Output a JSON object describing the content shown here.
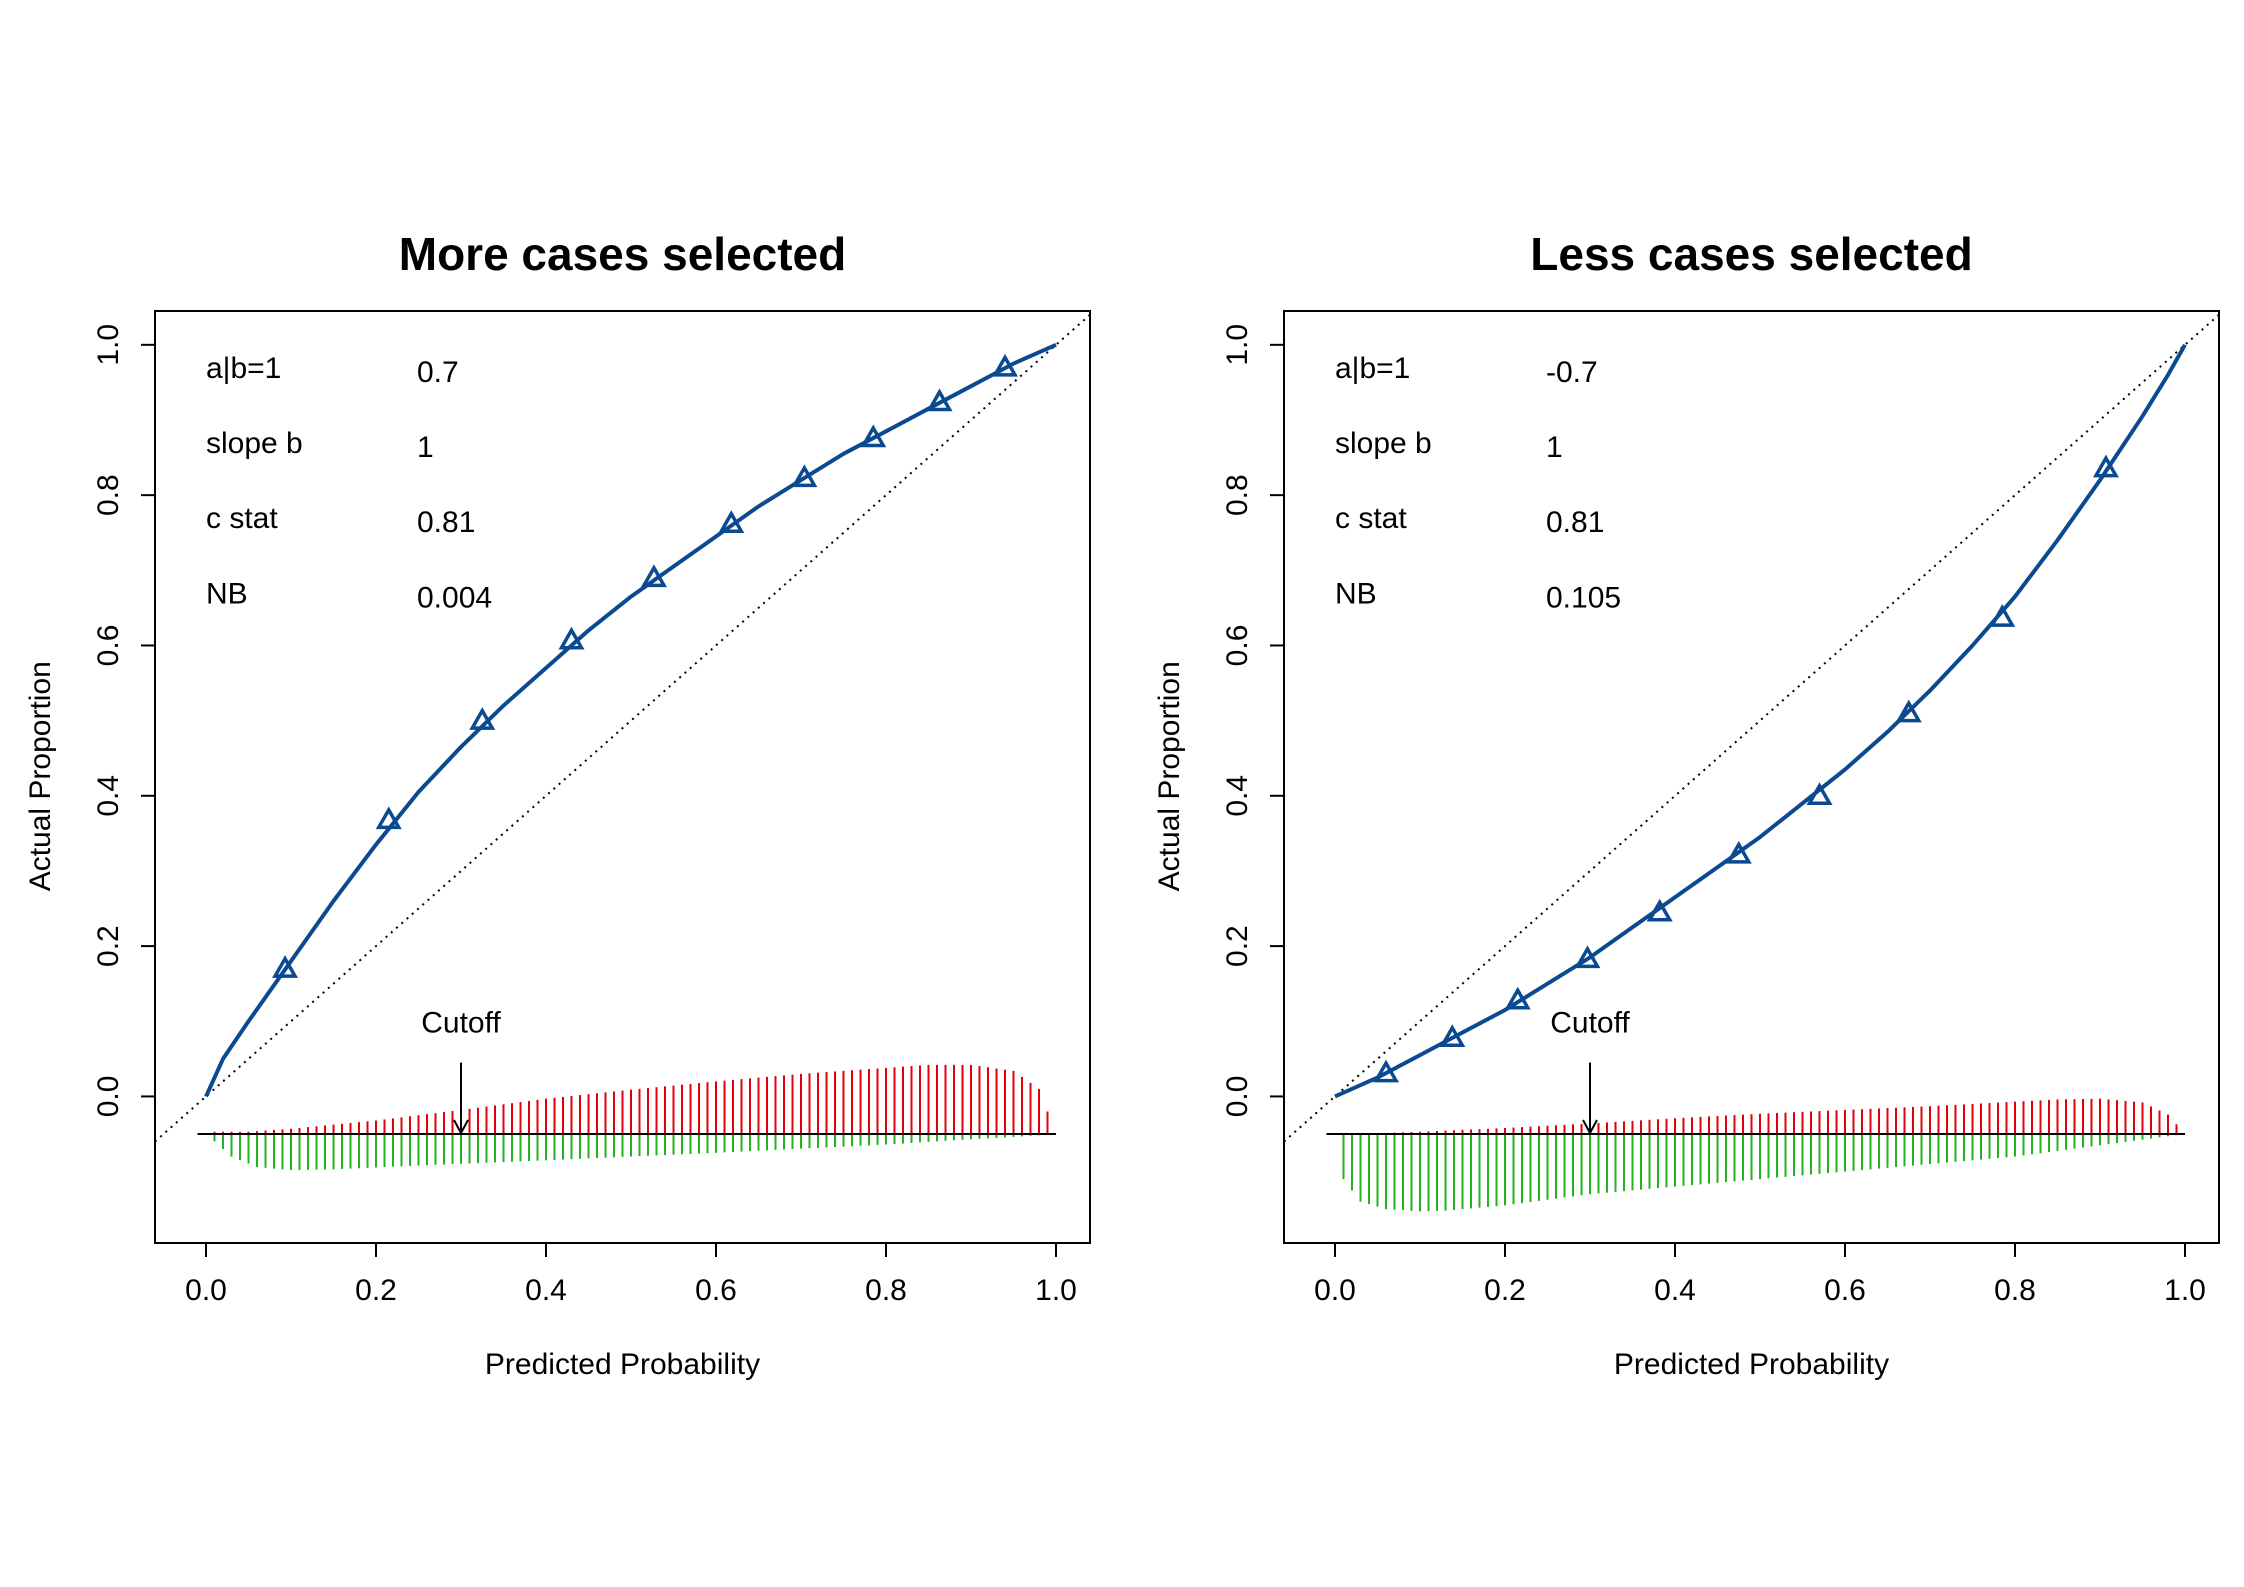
{
  "colors": {
    "curve": "#0b4a91",
    "positive_spikes": "#e0000b",
    "negative_spikes": "#22b322",
    "axis": "#000000",
    "background": "#ffffff"
  },
  "icons": {
    "marker": "open-triangle-icon",
    "cutoff_arrow": "down-arrow-icon"
  },
  "chart_data": [
    {
      "type": "line",
      "title": "More cases selected",
      "xlabel": "Predicted Probability",
      "ylabel": "Actual Proportion",
      "xlim": [
        -0.06,
        1.04
      ],
      "ylim": [
        -0.195,
        1.045
      ],
      "xticks": [
        "0.0",
        "0.2",
        "0.4",
        "0.6",
        "0.8",
        "1.0"
      ],
      "yticks": [
        "0.0",
        "0.2",
        "0.4",
        "0.6",
        "0.8",
        "1.0"
      ],
      "grid": false,
      "reference_line": {
        "style": "dotted",
        "from": [
          -0.06,
          -0.06
        ],
        "to": [
          1.04,
          1.04
        ]
      },
      "stats": [
        {
          "label": "a|b=1",
          "value": "0.7"
        },
        {
          "label": "slope b",
          "value": "1"
        },
        {
          "label": "c stat",
          "value": "0.81"
        },
        {
          "label": "NB",
          "value": "0.004"
        }
      ],
      "curve": {
        "x": [
          0.0,
          0.02,
          0.05,
          0.1,
          0.15,
          0.2,
          0.25,
          0.3,
          0.35,
          0.4,
          0.45,
          0.5,
          0.55,
          0.6,
          0.65,
          0.7,
          0.75,
          0.8,
          0.85,
          0.9,
          0.95,
          1.0
        ],
        "y": [
          0.0,
          0.05,
          0.1,
          0.18,
          0.26,
          0.335,
          0.405,
          0.465,
          0.52,
          0.57,
          0.62,
          0.665,
          0.705,
          0.745,
          0.785,
          0.82,
          0.855,
          0.885,
          0.915,
          0.945,
          0.975,
          1.0
        ]
      },
      "points": {
        "x": [
          0.093,
          0.215,
          0.325,
          0.43,
          0.527,
          0.618,
          0.704,
          0.785,
          0.863,
          0.94
        ],
        "y": [
          0.17,
          0.368,
          0.5,
          0.607,
          0.69,
          0.762,
          0.823,
          0.876,
          0.924,
          0.97
        ]
      },
      "cutoff": {
        "label": "Cutoff",
        "x": 0.3
      },
      "spike_baseline": -0.05,
      "spikes_positive_max": {
        "x": [
          0.05,
          0.1,
          0.2,
          0.3,
          0.4,
          0.5,
          0.6,
          0.7,
          0.8,
          0.85,
          0.9,
          0.95,
          0.98,
          1.0
        ],
        "y": [
          0.003,
          0.007,
          0.018,
          0.032,
          0.047,
          0.059,
          0.07,
          0.08,
          0.088,
          0.092,
          0.092,
          0.084,
          0.06,
          0.0
        ]
      },
      "spikes_negative_max": {
        "x": [
          0.0,
          0.03,
          0.06,
          0.1,
          0.15,
          0.25,
          0.4,
          0.6,
          0.8,
          0.9,
          0.95,
          1.0
        ],
        "y": [
          0.0,
          0.03,
          0.044,
          0.048,
          0.047,
          0.042,
          0.035,
          0.025,
          0.014,
          0.007,
          0.004,
          0.0
        ]
      }
    },
    {
      "type": "line",
      "title": "Less cases selected",
      "xlabel": "Predicted Probability",
      "ylabel": "Actual Proportion",
      "xlim": [
        -0.06,
        1.04
      ],
      "ylim": [
        -0.195,
        1.045
      ],
      "xticks": [
        "0.0",
        "0.2",
        "0.4",
        "0.6",
        "0.8",
        "1.0"
      ],
      "yticks": [
        "0.0",
        "0.2",
        "0.4",
        "0.6",
        "0.8",
        "1.0"
      ],
      "grid": false,
      "reference_line": {
        "style": "dotted",
        "from": [
          -0.06,
          -0.06
        ],
        "to": [
          1.04,
          1.04
        ]
      },
      "stats": [
        {
          "label": "a|b=1",
          "value": "-0.7"
        },
        {
          "label": "slope b",
          "value": "1"
        },
        {
          "label": "c stat",
          "value": "0.81"
        },
        {
          "label": "NB",
          "value": "0.105"
        }
      ],
      "curve": {
        "x": [
          0.0,
          0.05,
          0.1,
          0.15,
          0.2,
          0.25,
          0.3,
          0.35,
          0.4,
          0.45,
          0.5,
          0.55,
          0.6,
          0.65,
          0.7,
          0.75,
          0.8,
          0.85,
          0.9,
          0.95,
          0.98,
          1.0
        ],
        "y": [
          0.0,
          0.025,
          0.055,
          0.085,
          0.115,
          0.15,
          0.185,
          0.225,
          0.265,
          0.305,
          0.345,
          0.39,
          0.435,
          0.485,
          0.54,
          0.6,
          0.665,
          0.74,
          0.82,
          0.905,
          0.96,
          1.0
        ]
      },
      "points": {
        "x": [
          0.06,
          0.138,
          0.215,
          0.297,
          0.382,
          0.475,
          0.57,
          0.675,
          0.785,
          0.907
        ],
        "y": [
          0.031,
          0.078,
          0.128,
          0.183,
          0.245,
          0.322,
          0.4,
          0.51,
          0.637,
          0.836
        ]
      },
      "cutoff": {
        "label": "Cutoff",
        "x": 0.3
      },
      "spike_baseline": -0.05,
      "spikes_positive_max": {
        "x": [
          0.05,
          0.1,
          0.2,
          0.3,
          0.4,
          0.5,
          0.6,
          0.7,
          0.8,
          0.85,
          0.9,
          0.95,
          0.98,
          1.0
        ],
        "y": [
          0.001,
          0.003,
          0.008,
          0.014,
          0.021,
          0.027,
          0.032,
          0.037,
          0.043,
          0.046,
          0.047,
          0.042,
          0.026,
          0.0
        ]
      },
      "spikes_negative_max": {
        "x": [
          0.0,
          0.01,
          0.03,
          0.06,
          0.1,
          0.13,
          0.2,
          0.3,
          0.4,
          0.5,
          0.6,
          0.7,
          0.8,
          0.9,
          1.0
        ],
        "y": [
          0.0,
          0.06,
          0.09,
          0.1,
          0.103,
          0.102,
          0.095,
          0.08,
          0.07,
          0.06,
          0.05,
          0.04,
          0.03,
          0.015,
          0.0
        ]
      }
    }
  ]
}
